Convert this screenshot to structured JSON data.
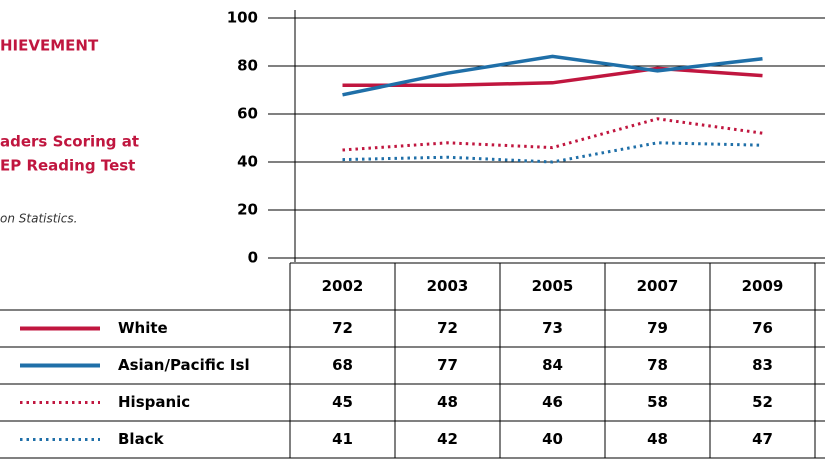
{
  "header": {
    "title": "HIEVEMENT",
    "subtitle_lines": [
      "aders Scoring at",
      "EP Reading Test"
    ],
    "source": "on Statistics."
  },
  "chart_data": {
    "type": "line",
    "categories": [
      "2002",
      "2003",
      "2005",
      "2007",
      "2009"
    ],
    "ylim": [
      0,
      100
    ],
    "yticks": [
      0,
      20,
      40,
      60,
      80,
      100
    ],
    "grid": true,
    "series": [
      {
        "name": "White",
        "color": "#c0163f",
        "style": "solid",
        "values": [
          72,
          72,
          73,
          79,
          76
        ]
      },
      {
        "name": "Asian/Pacific Isl",
        "color": "#1f6fa8",
        "style": "solid",
        "values": [
          68,
          77,
          84,
          78,
          83
        ]
      },
      {
        "name": "Hispanic",
        "color": "#c0163f",
        "style": "dotted",
        "values": [
          45,
          48,
          46,
          58,
          52
        ]
      },
      {
        "name": "Black",
        "color": "#1f6fa8",
        "style": "dotted",
        "values": [
          41,
          42,
          40,
          48,
          47
        ]
      }
    ]
  }
}
